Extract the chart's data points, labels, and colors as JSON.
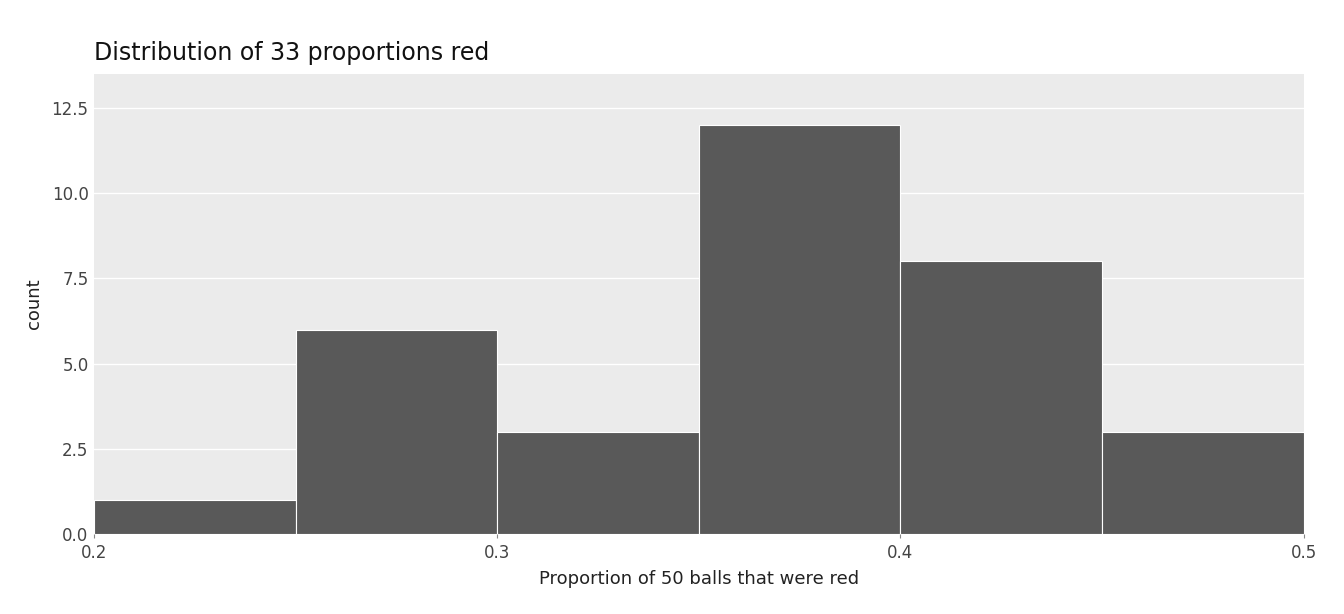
{
  "title": "Distribution of 33 proportions red",
  "xlabel": "Proportion of 50 balls that were red",
  "ylabel": "count",
  "bar_edges": [
    0.2,
    0.25,
    0.3,
    0.35,
    0.4,
    0.45,
    0.5
  ],
  "bar_heights": [
    1,
    6,
    3,
    12,
    8,
    3
  ],
  "bar_color": "#595959",
  "figure_background": "#FFFFFF",
  "panel_background": "#EBEBEB",
  "grid_color": "#FFFFFF",
  "ylim": [
    0,
    13.5
  ],
  "yticks": [
    0.0,
    2.5,
    5.0,
    7.5,
    10.0,
    12.5
  ],
  "xticks": [
    0.2,
    0.3,
    0.4,
    0.5
  ],
  "title_fontsize": 17,
  "label_fontsize": 13,
  "tick_fontsize": 12
}
